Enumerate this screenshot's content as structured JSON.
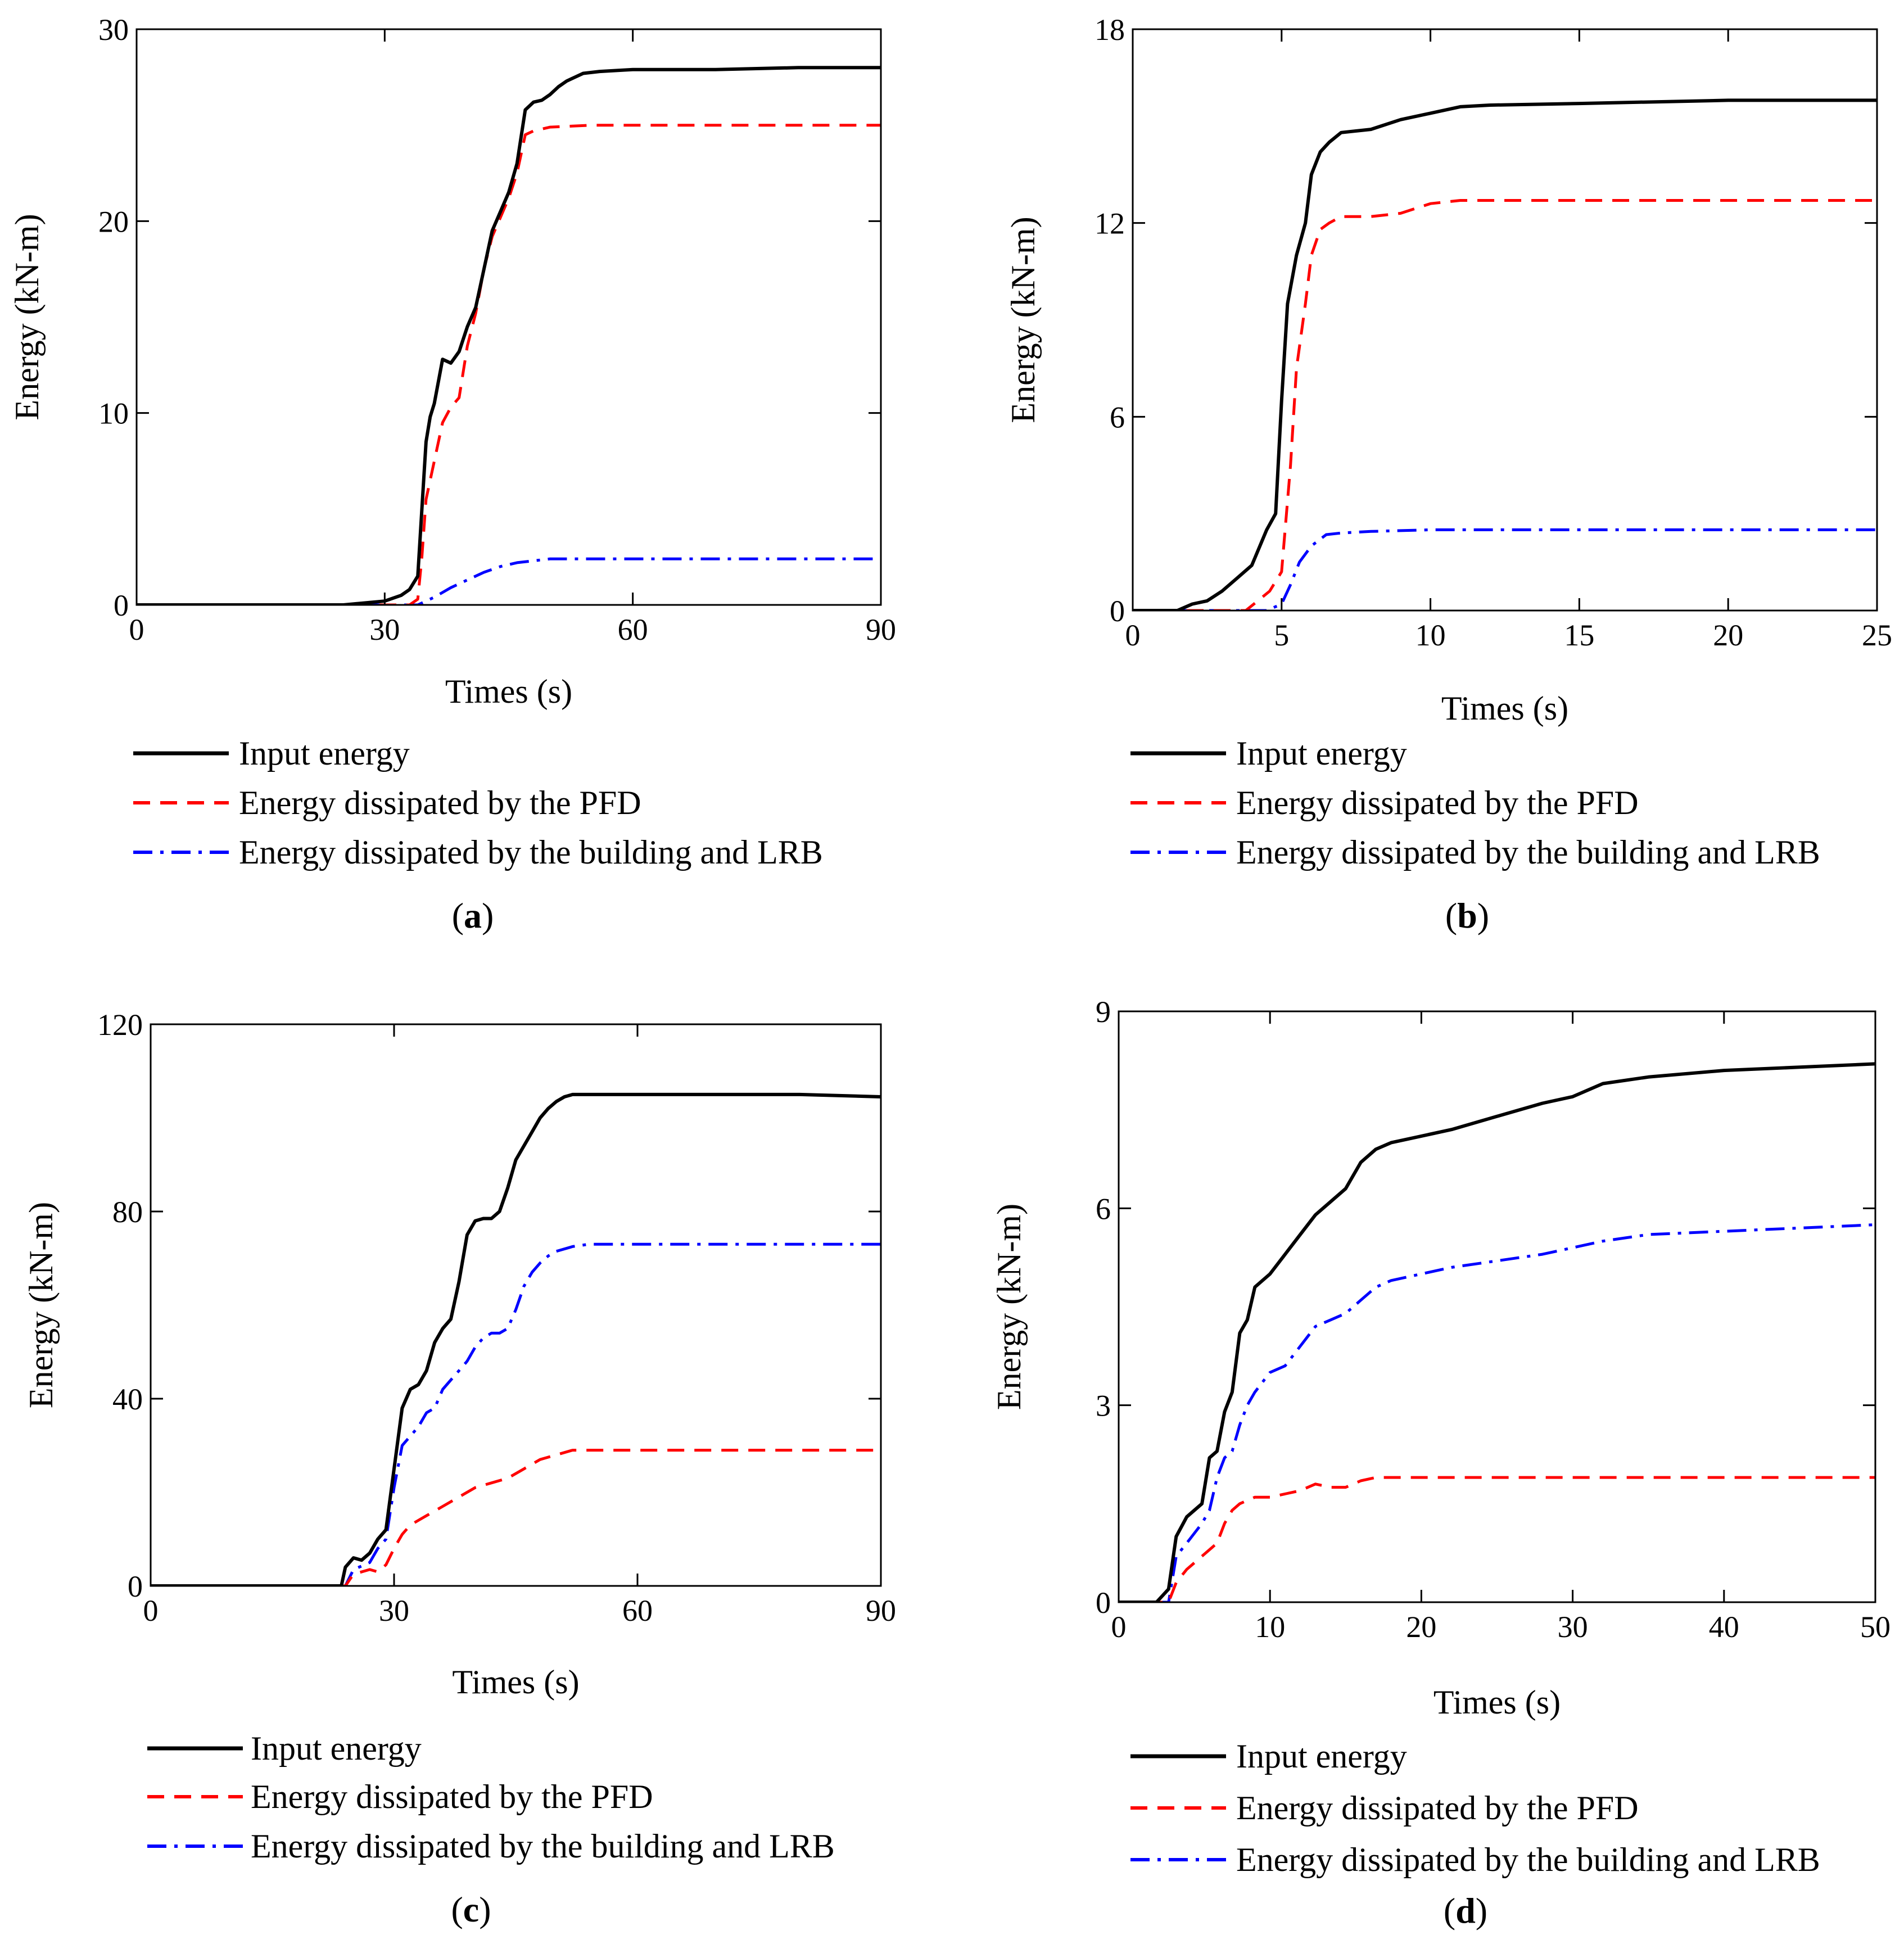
{
  "figure": {
    "colors": {
      "input": "#000000",
      "pfd": "#ff0000",
      "lrb": "#0000ff",
      "axis": "#000000"
    },
    "legend_labels": {
      "input": "Input energy",
      "pfd": "Energy dissipated by the PFD",
      "lrb": "Energy dissipated by the building and LRB"
    }
  },
  "chart_data": [
    {
      "type": "line",
      "panel": "(a)",
      "panel_letter": "a",
      "title": "",
      "xlabel": "Times (s)",
      "ylabel": "Energy  (kN-m)",
      "xlim": [
        0,
        90
      ],
      "ylim": [
        0,
        30
      ],
      "xticks": [
        0,
        30,
        60,
        90
      ],
      "yticks": [
        0,
        10,
        20,
        30
      ],
      "grid": false,
      "legend": "below",
      "series": [
        {
          "name": "Input energy",
          "key": "input",
          "style": "solid",
          "x": [
            0,
            25,
            30,
            32,
            33,
            34,
            34.5,
            35,
            35.5,
            36,
            37,
            38,
            39,
            40,
            41,
            42,
            43,
            44,
            45,
            46,
            47,
            48,
            49,
            50,
            51,
            52,
            53,
            54,
            56,
            60,
            70,
            80,
            90
          ],
          "y": [
            0,
            0,
            0.2,
            0.5,
            0.8,
            1.5,
            5,
            8.5,
            9.8,
            10.5,
            12.8,
            12.6,
            13.2,
            14.5,
            15.5,
            17.5,
            19.5,
            20.5,
            21.5,
            23,
            25.8,
            26.2,
            26.3,
            26.6,
            27,
            27.3,
            27.5,
            27.7,
            27.8,
            27.9,
            27.9,
            28.0,
            28.0
          ]
        },
        {
          "name": "Energy dissipated by the PFD",
          "key": "pfd",
          "style": "dashed",
          "x": [
            0,
            33,
            34,
            34.5,
            35,
            36,
            37,
            38,
            39,
            40,
            41,
            42,
            43,
            44,
            45,
            46,
            47,
            48,
            50,
            55,
            60,
            70,
            80,
            90
          ],
          "y": [
            0,
            0,
            0.3,
            2.5,
            5.5,
            7.5,
            9.5,
            10.3,
            10.8,
            13.5,
            15.2,
            17.5,
            19.2,
            20.2,
            21.2,
            22.5,
            24.5,
            24.7,
            24.9,
            25.0,
            25.0,
            25.0,
            25.0,
            25.0
          ]
        },
        {
          "name": "Energy dissipated by the building and LRB",
          "key": "lrb",
          "style": "dashdot",
          "x": [
            0,
            34,
            36,
            38,
            40,
            42,
            44,
            46,
            48,
            50,
            55,
            60,
            70,
            80,
            90
          ],
          "y": [
            0,
            0,
            0.4,
            0.9,
            1.3,
            1.7,
            2.0,
            2.2,
            2.3,
            2.4,
            2.4,
            2.4,
            2.4,
            2.4,
            2.4
          ]
        }
      ]
    },
    {
      "type": "line",
      "panel": "(b)",
      "panel_letter": "b",
      "title": "",
      "xlabel": "Times (s)",
      "ylabel": "Energy  (kN-m)",
      "xlim": [
        0,
        25
      ],
      "ylim": [
        0,
        18
      ],
      "xticks": [
        0,
        5,
        10,
        15,
        20,
        25
      ],
      "yticks": [
        0,
        6,
        12,
        18
      ],
      "grid": false,
      "legend": "below",
      "series": [
        {
          "name": "Input energy",
          "key": "input",
          "style": "solid",
          "x": [
            0,
            1.5,
            2,
            2.5,
            3,
            3.5,
            4,
            4.5,
            4.8,
            5,
            5.2,
            5.5,
            5.8,
            6,
            6.3,
            6.6,
            7,
            8,
            9,
            10,
            11,
            12,
            15,
            20,
            25
          ],
          "y": [
            0,
            0,
            0.2,
            0.3,
            0.6,
            1.0,
            1.4,
            2.5,
            3.0,
            6.5,
            9.5,
            11.0,
            12.0,
            13.5,
            14.2,
            14.5,
            14.8,
            14.9,
            15.2,
            15.4,
            15.6,
            15.65,
            15.7,
            15.8,
            15.8
          ]
        },
        {
          "name": "Energy dissipated by the PFD",
          "key": "pfd",
          "style": "dashed",
          "x": [
            0,
            3.8,
            4.2,
            4.6,
            5,
            5.3,
            5.5,
            5.8,
            6,
            6.3,
            6.6,
            7,
            8,
            9,
            10,
            11,
            15,
            20,
            25
          ],
          "y": [
            0,
            0,
            0.3,
            0.6,
            1.2,
            4.5,
            7.5,
            9.5,
            11.0,
            11.8,
            12.0,
            12.2,
            12.2,
            12.3,
            12.6,
            12.7,
            12.7,
            12.7,
            12.7
          ]
        },
        {
          "name": "Energy dissipated by the building and LRB",
          "key": "lrb",
          "style": "dashdot",
          "x": [
            0,
            4.5,
            5,
            5.3,
            5.6,
            6,
            6.5,
            7,
            8,
            10,
            15,
            20,
            25
          ],
          "y": [
            0,
            0,
            0.2,
            0.8,
            1.5,
            2.0,
            2.35,
            2.4,
            2.45,
            2.5,
            2.5,
            2.5,
            2.5
          ]
        }
      ]
    },
    {
      "type": "line",
      "panel": "(c)",
      "panel_letter": "c",
      "title": "",
      "xlabel": "Times (s)",
      "ylabel": "Energy  (kN-m)",
      "xlim": [
        0,
        90
      ],
      "ylim": [
        0,
        120
      ],
      "xticks": [
        0,
        30,
        60,
        90
      ],
      "yticks": [
        0,
        40,
        80,
        120
      ],
      "grid": false,
      "legend": "below",
      "series": [
        {
          "name": "Input energy",
          "key": "input",
          "style": "solid",
          "x": [
            0,
            23.5,
            24,
            25,
            26,
            27,
            28,
            29,
            30,
            31,
            32,
            33,
            34,
            35,
            36,
            37,
            38,
            39,
            40,
            41,
            42,
            43,
            44,
            45,
            46,
            47,
            48,
            49,
            50,
            51,
            52,
            53,
            55,
            60,
            70,
            80,
            90
          ],
          "y": [
            0,
            0,
            4,
            6,
            5.5,
            7,
            10,
            12,
            25,
            38,
            42,
            43,
            46,
            52,
            55,
            57,
            65,
            75,
            78,
            78.5,
            78.5,
            80,
            85,
            91,
            94,
            97,
            100,
            102,
            103.5,
            104.5,
            105,
            105,
            105,
            105,
            105,
            105,
            104.5
          ]
        },
        {
          "name": "Energy dissipated by the PFD",
          "key": "pfd",
          "style": "dashed",
          "x": [
            0,
            24,
            25,
            27,
            28,
            29,
            30,
            31,
            32,
            33,
            34,
            36,
            38,
            40,
            42,
            44,
            46,
            48,
            50,
            52,
            55,
            60,
            70,
            80,
            90
          ],
          "y": [
            0,
            0,
            2.5,
            3.5,
            3.0,
            4.5,
            8,
            11,
            13,
            14,
            15,
            17,
            19,
            21,
            22,
            23,
            25,
            27,
            28,
            29,
            29,
            29,
            29,
            29,
            29
          ]
        },
        {
          "name": "Energy dissipated by the building and LRB",
          "key": "lrb",
          "style": "dashdot",
          "x": [
            0,
            24,
            25,
            27,
            28,
            29,
            30,
            31,
            32,
            33,
            34,
            35,
            36,
            37,
            38,
            39,
            40,
            41,
            42,
            43,
            44,
            45,
            46,
            47,
            48,
            49,
            50,
            52,
            54,
            60,
            70,
            80,
            90
          ],
          "y": [
            0,
            0,
            3.5,
            5,
            8,
            10,
            21,
            30,
            32,
            34,
            37,
            38,
            42,
            44,
            46,
            48,
            51,
            53,
            54,
            54,
            55,
            59,
            64,
            67,
            69,
            70.5,
            71.5,
            72.5,
            73,
            73,
            73,
            73,
            73
          ]
        }
      ]
    },
    {
      "type": "line",
      "panel": "(d)",
      "panel_letter": "d",
      "title": "",
      "xlabel": "Times (s)",
      "ylabel": "Energy  (kN-m)",
      "xlim": [
        0,
        50
      ],
      "ylim": [
        0,
        9
      ],
      "xticks": [
        0,
        10,
        20,
        30,
        40,
        50
      ],
      "yticks": [
        0,
        3,
        6,
        9
      ],
      "grid": false,
      "legend": "below",
      "series": [
        {
          "name": "Input energy",
          "key": "input",
          "style": "solid",
          "x": [
            0,
            2.5,
            3.3,
            3.8,
            4.5,
            5.5,
            6,
            6.5,
            7,
            7.5,
            8,
            8.5,
            9,
            10,
            11,
            12,
            13,
            14,
            15,
            16,
            17,
            18,
            20,
            22,
            25,
            28,
            30,
            32,
            35,
            40,
            45,
            50
          ],
          "y": [
            0,
            0,
            0.2,
            1.0,
            1.3,
            1.5,
            2.2,
            2.3,
            2.9,
            3.2,
            4.1,
            4.3,
            4.8,
            5.0,
            5.3,
            5.6,
            5.9,
            6.1,
            6.3,
            6.7,
            6.9,
            7.0,
            7.1,
            7.2,
            7.4,
            7.6,
            7.7,
            7.9,
            8.0,
            8.1,
            8.15,
            8.2
          ]
        },
        {
          "name": "Energy dissipated by the PFD",
          "key": "pfd",
          "style": "dashed",
          "x": [
            0,
            3.3,
            3.8,
            4.5,
            5.5,
            6.5,
            7,
            7.5,
            8,
            9,
            10,
            12,
            13,
            14,
            15,
            16,
            17,
            18,
            20,
            25,
            30,
            40,
            50
          ],
          "y": [
            0,
            0,
            0.3,
            0.5,
            0.7,
            0.9,
            1.2,
            1.4,
            1.5,
            1.6,
            1.6,
            1.7,
            1.8,
            1.75,
            1.75,
            1.85,
            1.9,
            1.9,
            1.9,
            1.9,
            1.9,
            1.9,
            1.9
          ]
        },
        {
          "name": "Energy dissipated by the building and LRB",
          "key": "lrb",
          "style": "dashdot",
          "x": [
            0,
            3.3,
            3.8,
            4.5,
            5.5,
            6,
            6.5,
            7,
            7.5,
            8,
            8.5,
            9,
            10,
            11,
            12,
            13,
            14,
            15,
            16,
            17,
            18,
            20,
            22,
            25,
            28,
            30,
            32,
            35,
            40,
            45,
            50
          ],
          "y": [
            0,
            0,
            0.7,
            0.9,
            1.2,
            1.4,
            1.9,
            2.2,
            2.3,
            2.7,
            3.0,
            3.2,
            3.5,
            3.6,
            3.9,
            4.2,
            4.3,
            4.4,
            4.6,
            4.8,
            4.9,
            5.0,
            5.1,
            5.2,
            5.3,
            5.4,
            5.5,
            5.6,
            5.65,
            5.7,
            5.75
          ]
        }
      ]
    }
  ]
}
